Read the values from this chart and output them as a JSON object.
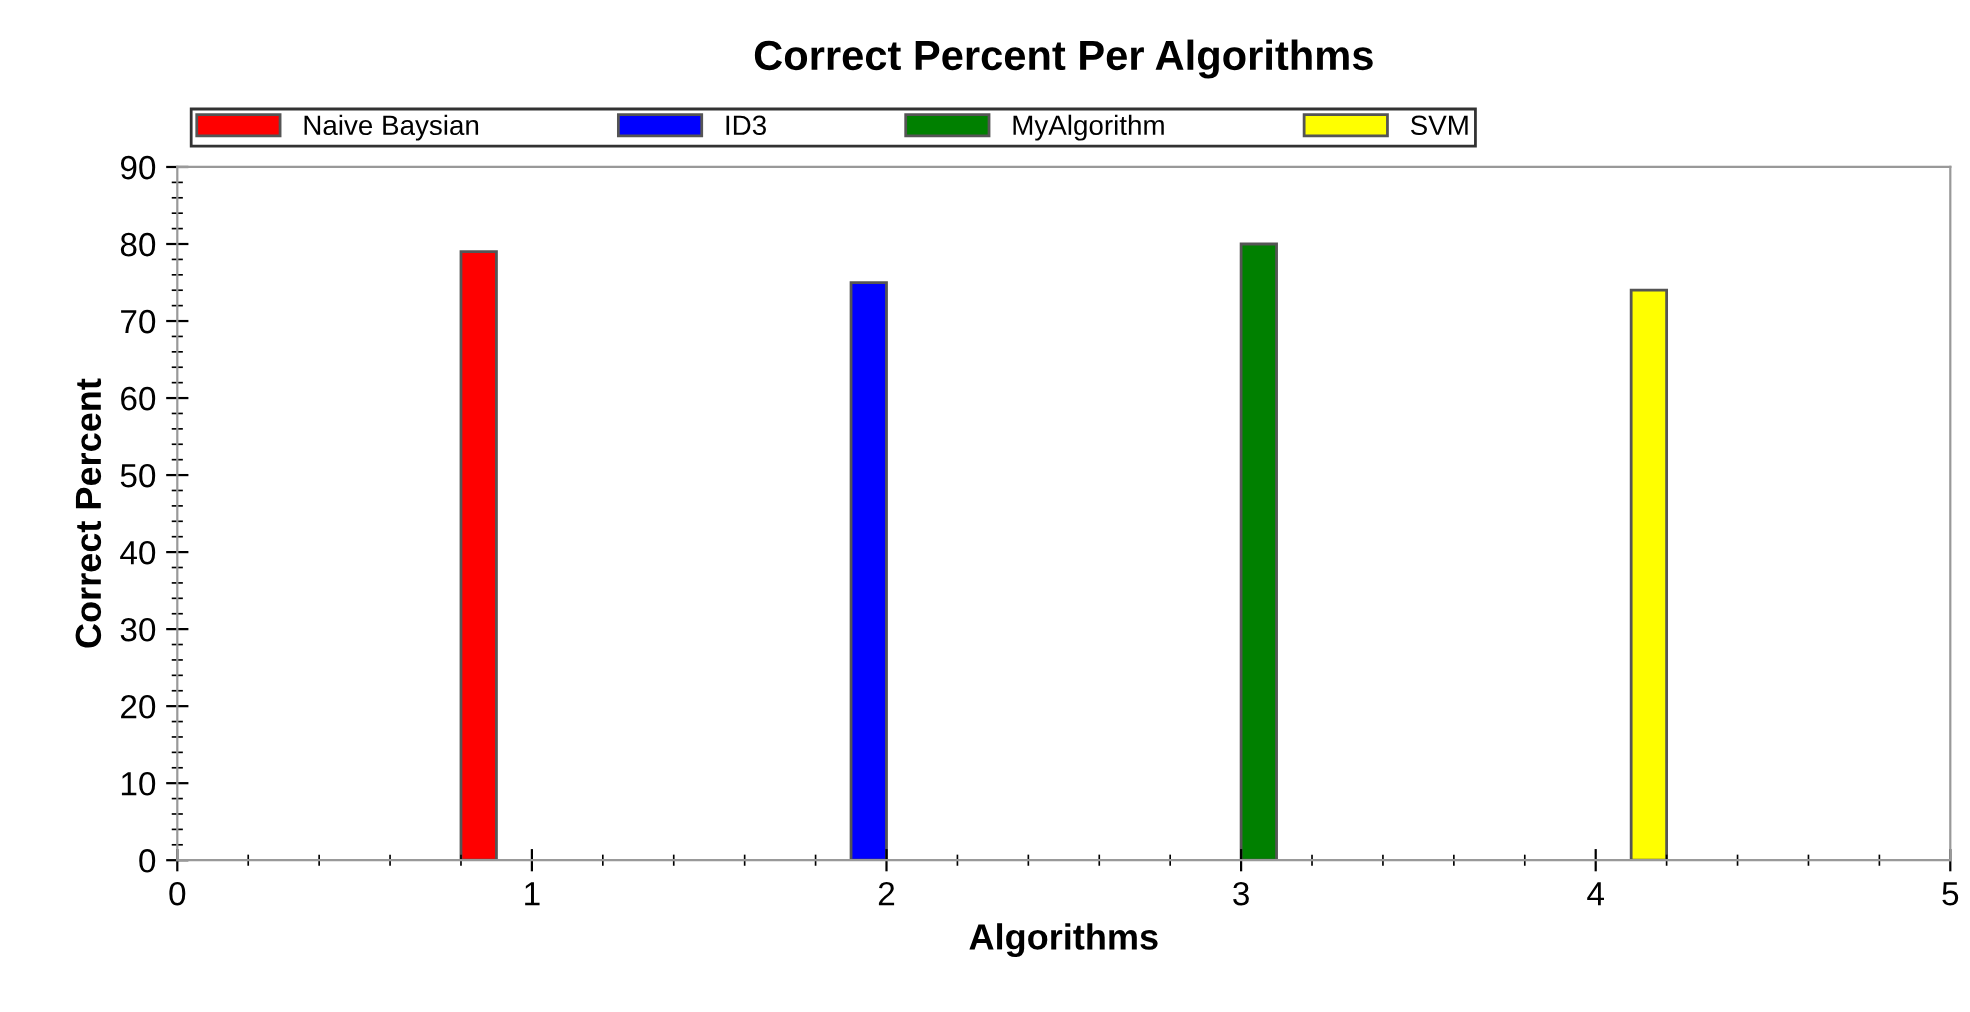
{
  "chart_data": {
    "type": "bar",
    "title": "Correct Percent Per Algorithms",
    "xlabel": "Algorithms",
    "ylabel": "Correct Percent",
    "series": [
      {
        "name": "Naive Baysian",
        "color": "#ff0000",
        "x": [
          0.85
        ],
        "values": [
          79
        ]
      },
      {
        "name": "ID3",
        "color": "#0000ff",
        "x": [
          1.95
        ],
        "values": [
          75
        ]
      },
      {
        "name": "MyAlgorithm",
        "color": "#008000",
        "x": [
          3.05
        ],
        "values": [
          80
        ]
      },
      {
        "name": "SVM",
        "color": "#ffff00",
        "x": [
          4.15
        ],
        "values": [
          74
        ]
      }
    ],
    "xlim": [
      0,
      5
    ],
    "xticks": [
      0,
      1,
      2,
      3,
      4,
      5
    ],
    "ylim": [
      0,
      90
    ],
    "yticks": [
      0,
      10,
      20,
      30,
      40,
      50,
      60,
      70,
      80,
      90
    ],
    "grid": false,
    "legend": "top"
  }
}
